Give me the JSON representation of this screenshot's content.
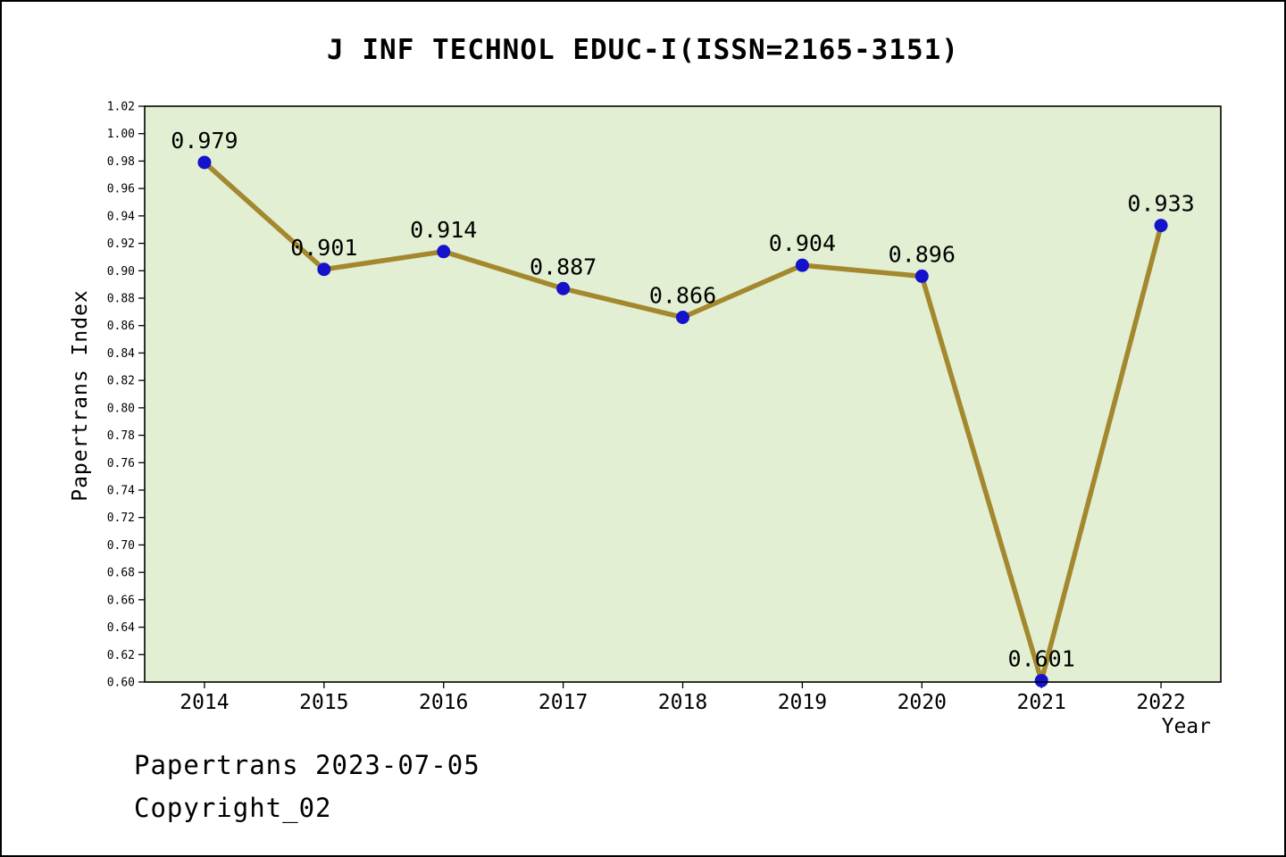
{
  "chart_data": {
    "type": "line",
    "title": "J INF TECHNOL EDUC-I(ISSN=2165-3151)",
    "xlabel": "Year",
    "ylabel": "Papertrans Index",
    "categories": [
      "2014",
      "2015",
      "2016",
      "2017",
      "2018",
      "2019",
      "2020",
      "2021",
      "2022"
    ],
    "series": [
      {
        "name": "Papertrans Index",
        "values": [
          0.979,
          0.901,
          0.914,
          0.887,
          0.866,
          0.904,
          0.896,
          0.601,
          0.933
        ]
      }
    ],
    "ylim": [
      0.6,
      1.02
    ],
    "ytick_step": 0.02,
    "ytick_decimals": 2,
    "point_label_decimals": 3,
    "grid": false,
    "legend_position": "none",
    "colors": {
      "plot_bg": "#e2efd3",
      "line": "#a3882e",
      "marker": "#1512cc",
      "axis": "#000000",
      "text": "#000000"
    }
  },
  "footer": {
    "line1": "Papertrans 2023-07-05",
    "line2": "Copyright_02"
  }
}
